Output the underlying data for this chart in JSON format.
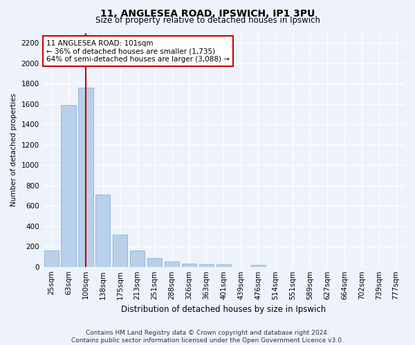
{
  "title1": "11, ANGLESEA ROAD, IPSWICH, IP1 3PU",
  "title2": "Size of property relative to detached houses in Ipswich",
  "xlabel": "Distribution of detached houses by size in Ipswich",
  "ylabel": "Number of detached properties",
  "categories": [
    "25sqm",
    "63sqm",
    "100sqm",
    "138sqm",
    "175sqm",
    "213sqm",
    "251sqm",
    "288sqm",
    "326sqm",
    "363sqm",
    "401sqm",
    "439sqm",
    "476sqm",
    "514sqm",
    "551sqm",
    "589sqm",
    "627sqm",
    "664sqm",
    "702sqm",
    "739sqm",
    "777sqm"
  ],
  "values": [
    160,
    1590,
    1760,
    710,
    315,
    160,
    85,
    55,
    30,
    22,
    22,
    0,
    20,
    0,
    0,
    0,
    0,
    0,
    0,
    0,
    0
  ],
  "bar_color": "#b8d0ea",
  "bar_edge_color": "#7aaace",
  "vline_x": 2,
  "vline_color": "#cc0000",
  "annotation_text": "11 ANGLESEA ROAD: 101sqm\n← 36% of detached houses are smaller (1,735)\n64% of semi-detached houses are larger (3,088) →",
  "annotation_box_color": "#ffffff",
  "annotation_box_edge": "#cc0000",
  "ylim": [
    0,
    2300
  ],
  "yticks": [
    0,
    200,
    400,
    600,
    800,
    1000,
    1200,
    1400,
    1600,
    1800,
    2000,
    2200
  ],
  "footer1": "Contains HM Land Registry data © Crown copyright and database right 2024.",
  "footer2": "Contains public sector information licensed under the Open Government Licence v3.0.",
  "bg_color": "#eef3fb",
  "plot_bg_color": "#eef3fb",
  "grid_color": "#ffffff",
  "title1_fontsize": 10,
  "title2_fontsize": 8.5,
  "xlabel_fontsize": 8.5,
  "ylabel_fontsize": 7.5,
  "tick_fontsize": 7.5,
  "annotation_fontsize": 7.5,
  "footer_fontsize": 6.5
}
